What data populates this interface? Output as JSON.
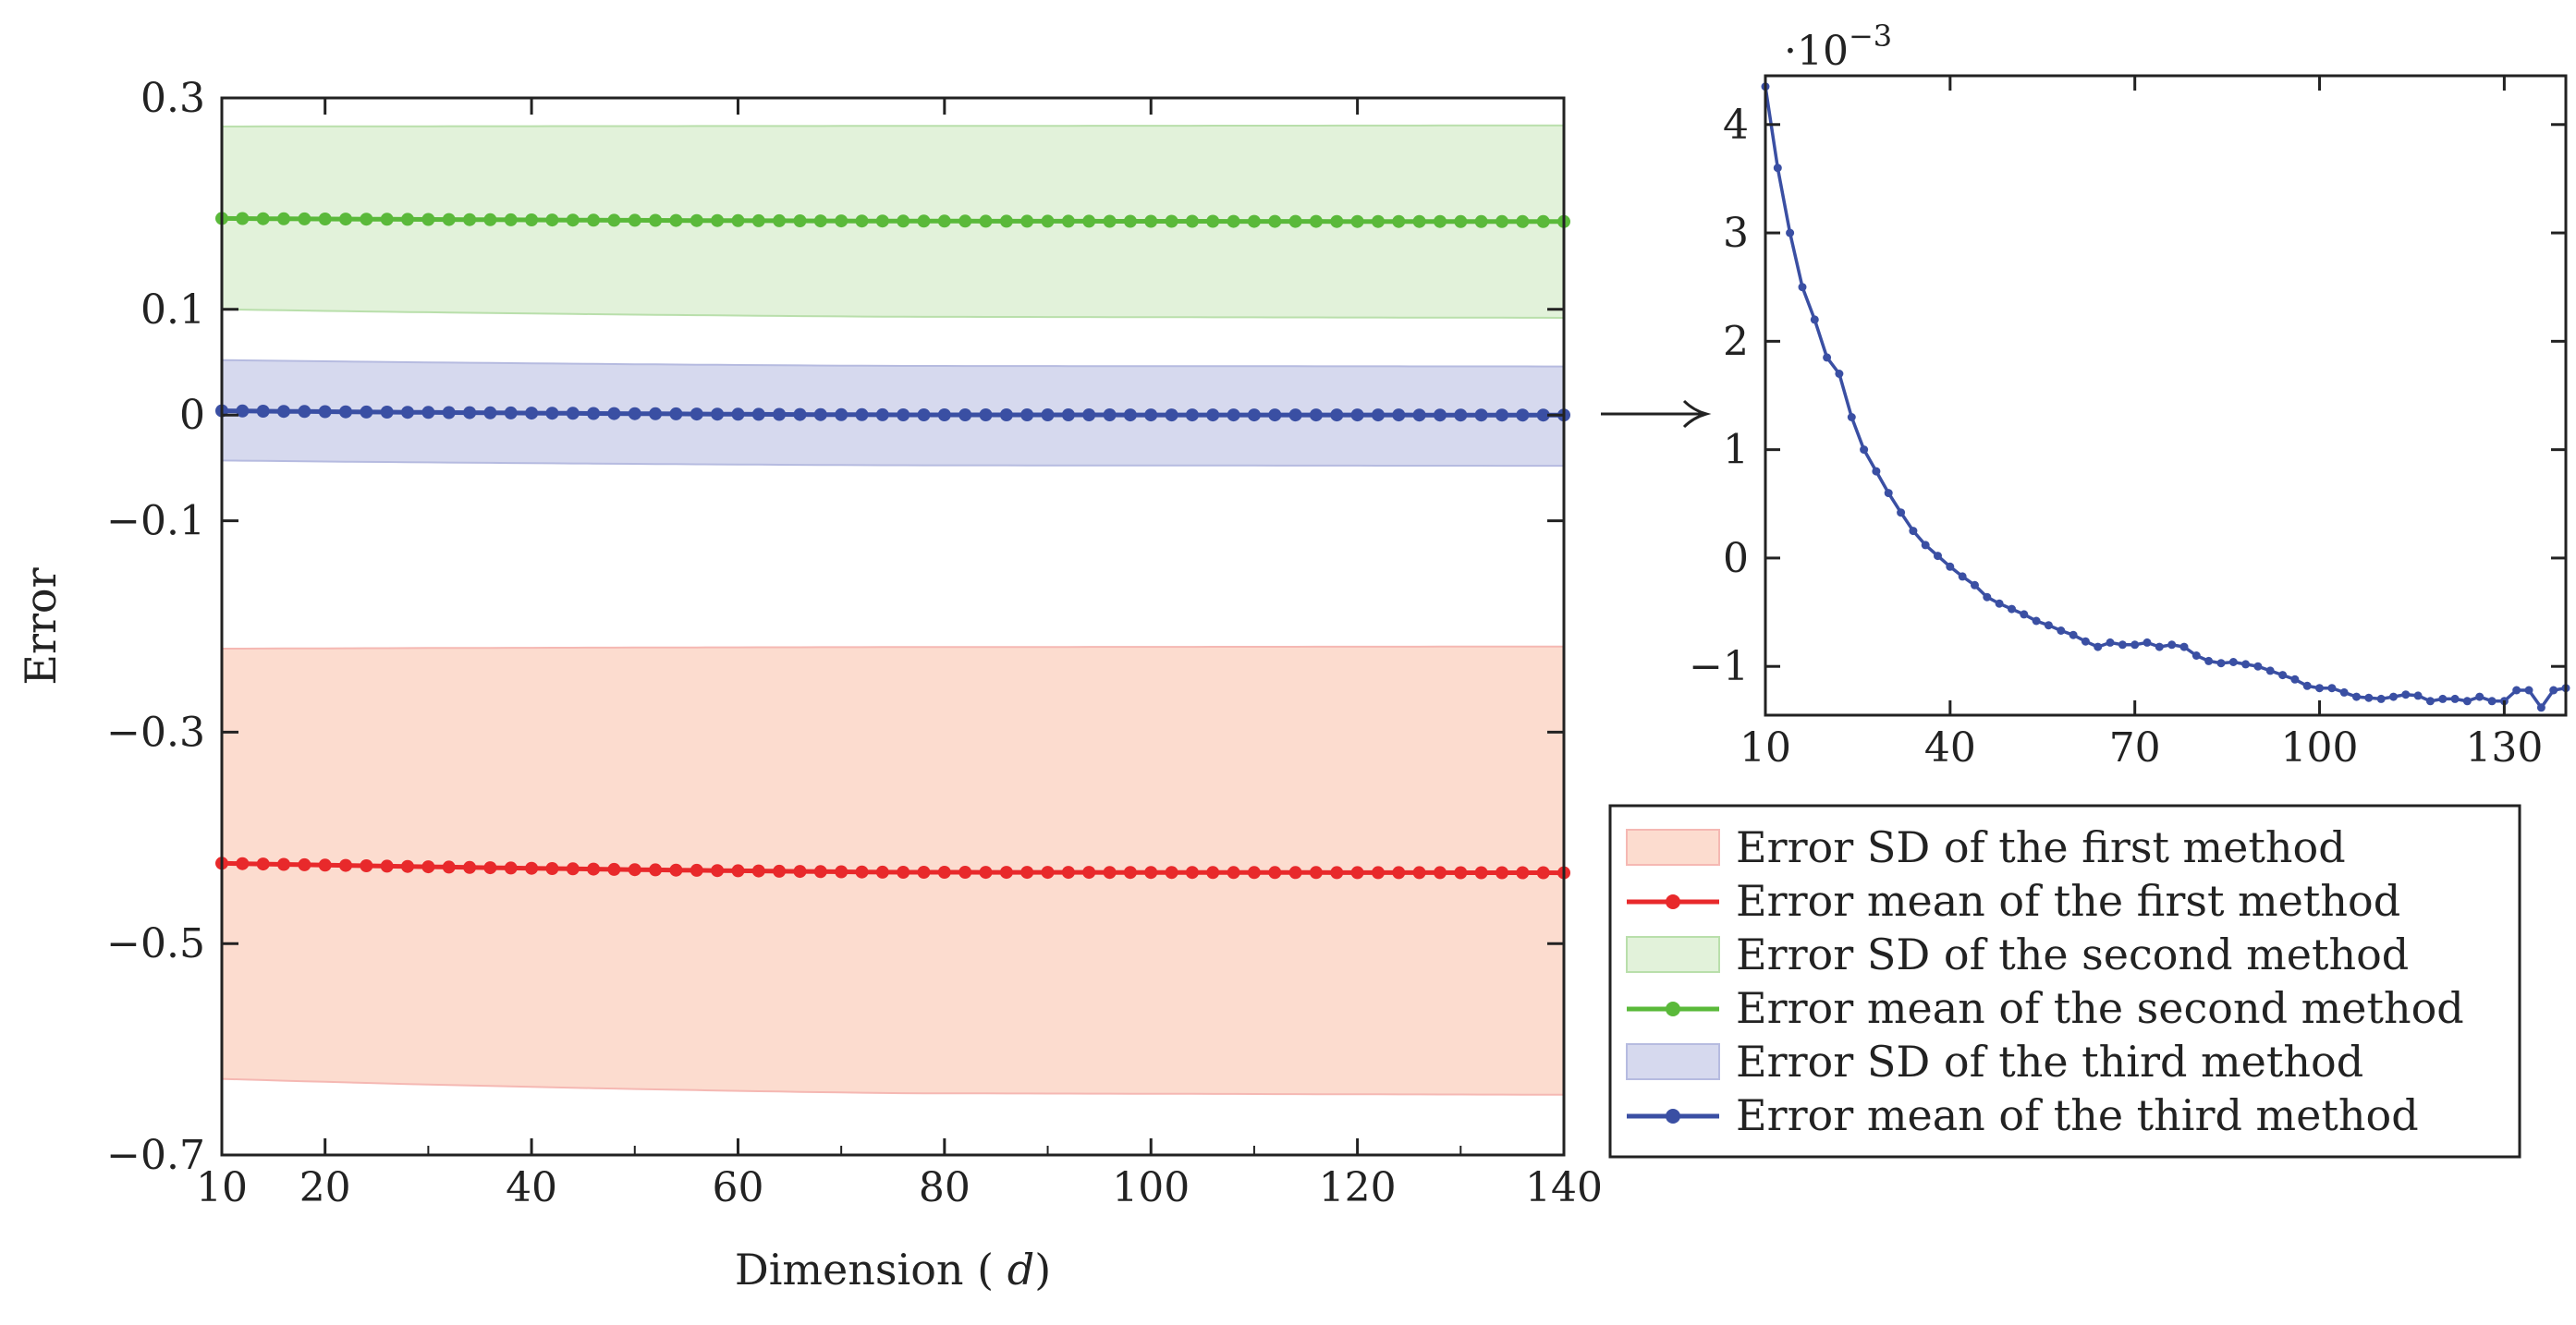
{
  "chart_data": [
    {
      "type": "line",
      "name": "main",
      "xlabel": "Dimension (d)",
      "ylabel": "Error",
      "xlim": [
        10,
        140
      ],
      "ylim": [
        -0.7,
        0.3
      ],
      "xticks": [
        10,
        20,
        40,
        60,
        80,
        100,
        120,
        140
      ],
      "xtick_labels": [
        "10",
        "20",
        "40",
        "60",
        "80",
        "100",
        "120",
        "140"
      ],
      "yticks": [
        0.3,
        0.1,
        0,
        -0.1,
        -0.3,
        -0.5,
        -0.7
      ],
      "ytick_labels": [
        "0.3",
        "0.1",
        "0",
        "−0.1",
        "−0.3",
        "−0.5",
        "−0.7"
      ],
      "x": {
        "start": 10,
        "end": 140,
        "step": 2
      },
      "series": [
        {
          "name": "first",
          "color": "#e8292b",
          "fill": "#fcdccf",
          "fill_edge": "#f5b8b3",
          "mean": [
            -0.424,
            -0.4325,
            -0.433
          ],
          "sd_upper": [
            -0.221,
            -0.2195,
            -0.219
          ],
          "sd_lower": [
            -0.628,
            -0.6415,
            -0.643
          ]
        },
        {
          "name": "second",
          "color": "#5ab93a",
          "fill": "#e2f2da",
          "fill_edge": "#b9dfab",
          "mean": [
            0.186,
            0.1835,
            0.183
          ],
          "sd_upper": [
            0.273,
            0.2735,
            0.274
          ],
          "sd_lower": [
            0.1,
            0.093,
            0.092
          ]
        },
        {
          "name": "third",
          "color": "#3a4fa3",
          "fill": "#d6d9ee",
          "fill_edge": "#b6bbe0",
          "mean": [
            0.004,
            0.0002,
            0.0
          ],
          "sd_upper": [
            0.052,
            0.0465,
            0.046
          ],
          "sd_lower": [
            -0.043,
            -0.0475,
            -0.048
          ]
        }
      ]
    },
    {
      "type": "line",
      "name": "inset",
      "scale_label": "·10",
      "scale_exponent": "−3",
      "xlim": [
        10,
        140
      ],
      "ylim": [
        -1.45,
        4.45
      ],
      "xticks": [
        10,
        40,
        70,
        100,
        130
      ],
      "xtick_labels": [
        "10",
        "40",
        "70",
        "100",
        "130"
      ],
      "yticks": [
        4,
        3,
        2,
        1,
        0,
        -1
      ],
      "ytick_labels": [
        "4",
        "3",
        "2",
        "1",
        "0",
        "−1"
      ],
      "series": [
        {
          "name": "third method mean",
          "color": "#3a4fa3",
          "x": [
            10,
            12,
            14,
            16,
            18,
            20,
            22,
            24,
            26,
            28,
            30,
            32,
            34,
            36,
            38,
            40,
            42,
            44,
            46,
            48,
            50,
            52,
            54,
            56,
            58,
            60,
            62,
            64,
            66,
            68,
            70,
            72,
            74,
            76,
            78,
            80,
            82,
            84,
            86,
            88,
            90,
            92,
            94,
            96,
            98,
            100,
            102,
            104,
            106,
            108,
            110,
            112,
            114,
            116,
            118,
            120,
            122,
            124,
            126,
            128,
            130,
            132,
            134,
            136,
            138,
            140
          ],
          "y": [
            4.35,
            3.6,
            3.0,
            2.5,
            2.2,
            1.85,
            1.7,
            1.3,
            1.0,
            0.8,
            0.6,
            0.42,
            0.25,
            0.12,
            0.02,
            -0.08,
            -0.17,
            -0.25,
            -0.36,
            -0.42,
            -0.47,
            -0.52,
            -0.58,
            -0.62,
            -0.67,
            -0.71,
            -0.77,
            -0.82,
            -0.78,
            -0.8,
            -0.8,
            -0.78,
            -0.82,
            -0.8,
            -0.82,
            -0.9,
            -0.95,
            -0.97,
            -0.96,
            -0.98,
            -1.0,
            -1.04,
            -1.08,
            -1.12,
            -1.18,
            -1.2,
            -1.2,
            -1.24,
            -1.28,
            -1.29,
            -1.3,
            -1.28,
            -1.26,
            -1.27,
            -1.32,
            -1.3,
            -1.3,
            -1.32,
            -1.28,
            -1.32,
            -1.32,
            -1.22,
            -1.22,
            -1.38,
            -1.22,
            -1.2
          ]
        }
      ]
    }
  ],
  "legend": {
    "placement": "bottom-right",
    "entries": [
      {
        "kind": "area",
        "label": "Error SD of the first method",
        "color": "#fcdccf",
        "edge": "#f5b8b3"
      },
      {
        "kind": "line",
        "label": "Error mean of the first method",
        "color": "#e8292b"
      },
      {
        "kind": "area",
        "label": "Error SD of the second method",
        "color": "#e2f2da",
        "edge": "#b9dfab"
      },
      {
        "kind": "line",
        "label": "Error mean of the second method",
        "color": "#5ab93a"
      },
      {
        "kind": "area",
        "label": "Error SD of the third method",
        "color": "#d6d9ee",
        "edge": "#b6bbe0"
      },
      {
        "kind": "line",
        "label": "Error mean of the third method",
        "color": "#3a4fa3"
      }
    ]
  }
}
